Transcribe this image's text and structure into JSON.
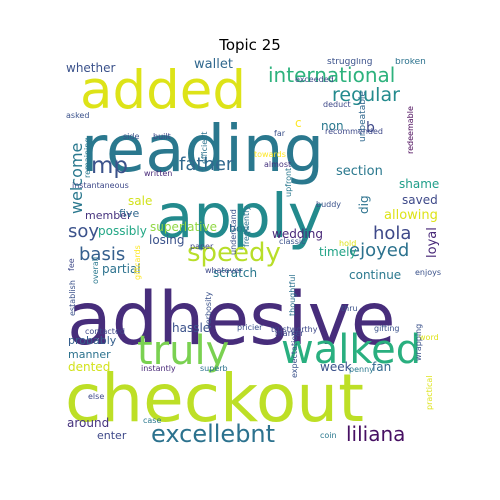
{
  "figure": {
    "title": "Topic 25",
    "words": [
      {
        "text": "checkout",
        "color": "#bddf26"
      },
      {
        "text": "adhesive",
        "color": "#472d7b"
      },
      {
        "text": "reading",
        "color": "#2a788e"
      },
      {
        "text": "apply",
        "color": "#238a8d"
      },
      {
        "text": "added",
        "color": "#dde318"
      },
      {
        "text": "truly",
        "color": "#7ad151"
      },
      {
        "text": "walked",
        "color": "#29af7f"
      },
      {
        "text": "speedy",
        "color": "#b8de29"
      },
      {
        "text": "excellebnt",
        "color": "#2c728e"
      },
      {
        "text": "liliana",
        "color": "#471063"
      },
      {
        "text": "international",
        "color": "#2db27d"
      },
      {
        "text": "father",
        "color": "#31688e"
      },
      {
        "text": "mp",
        "color": "#3b528b"
      },
      {
        "text": "regular",
        "color": "#238a8d"
      },
      {
        "text": "ejoyed",
        "color": "#2c728e"
      },
      {
        "text": "basis",
        "color": "#355f8d"
      },
      {
        "text": "hola",
        "color": "#3e4989"
      },
      {
        "text": "soy",
        "color": "#3b528b"
      },
      {
        "text": "welcome",
        "color": "#2a788e"
      },
      {
        "text": "wallet",
        "color": "#31688e"
      },
      {
        "text": "whether",
        "color": "#3b528b"
      },
      {
        "text": "section",
        "color": "#2a788e"
      },
      {
        "text": "shame",
        "color": "#1f9e89"
      },
      {
        "text": "saved",
        "color": "#3e4989"
      },
      {
        "text": "allowing",
        "color": "#dde318"
      },
      {
        "text": "continue",
        "color": "#2a788e"
      },
      {
        "text": "possibly",
        "color": "#22a785"
      },
      {
        "text": "member",
        "color": "#46337e"
      },
      {
        "text": "sale",
        "color": "#d2e21b"
      },
      {
        "text": "five",
        "color": "#31688e"
      },
      {
        "text": "superlative",
        "color": "#90d743"
      },
      {
        "text": "losing",
        "color": "#3b528b"
      },
      {
        "text": "partial",
        "color": "#2c728e"
      },
      {
        "text": "scratch",
        "color": "#2a788e"
      },
      {
        "text": "timely",
        "color": "#20a386"
      },
      {
        "text": "wedding",
        "color": "#482878"
      },
      {
        "text": "boy",
        "color": "#2a788e"
      },
      {
        "text": "hassle",
        "color": "#3b528b"
      },
      {
        "text": "probably",
        "color": "#355f8d"
      },
      {
        "text": "manner",
        "color": "#2c728e"
      },
      {
        "text": "dented",
        "color": "#d2e21b"
      },
      {
        "text": "around",
        "color": "#46337e"
      },
      {
        "text": "enter",
        "color": "#3e4989"
      },
      {
        "text": "week",
        "color": "#3b528b"
      },
      {
        "text": "fan",
        "color": "#31688e"
      },
      {
        "text": "non",
        "color": "#2a788e"
      },
      {
        "text": "b",
        "color": "#3e4989"
      },
      {
        "text": "c",
        "color": "#fde725"
      },
      {
        "text": "dig",
        "color": "#2c728e"
      },
      {
        "text": "loyal",
        "color": "#482878"
      },
      {
        "text": "struggling",
        "color": "#3b528b"
      },
      {
        "text": "broken",
        "color": "#2c728e"
      },
      {
        "text": "exceeded",
        "color": "#3e4989"
      },
      {
        "text": "deduct",
        "color": "#3e4989"
      },
      {
        "text": "unbeatable",
        "color": "#31688e"
      },
      {
        "text": "redeemable",
        "color": "#440154"
      },
      {
        "text": "asked",
        "color": "#3b528b"
      },
      {
        "text": "remaining",
        "color": "#2a788e"
      },
      {
        "text": "side",
        "color": "#3b528b"
      },
      {
        "text": "written",
        "color": "#482878"
      },
      {
        "text": "built",
        "color": "#3e4989"
      },
      {
        "text": "efficient",
        "color": "#2c728e"
      },
      {
        "text": "far",
        "color": "#3b528b"
      },
      {
        "text": "almost",
        "color": "#46337e"
      },
      {
        "text": "towards",
        "color": "#fde725"
      },
      {
        "text": "recommended",
        "color": "#3e4989"
      },
      {
        "text": "instantaneous",
        "color": "#3e4989"
      },
      {
        "text": "frequently",
        "color": "#2c728e"
      },
      {
        "text": "understand",
        "color": "#3b528b"
      },
      {
        "text": "upfront",
        "color": "#2a788e"
      },
      {
        "text": "buddy",
        "color": "#3b528b"
      },
      {
        "text": "fee",
        "color": "#3e4989"
      },
      {
        "text": "whatever",
        "color": "#3e4989"
      },
      {
        "text": "classic",
        "color": "#3b528b"
      },
      {
        "text": "hold",
        "color": "#dde318"
      },
      {
        "text": "paper",
        "color": "#3e4989"
      },
      {
        "text": "enjoys",
        "color": "#3b528b"
      },
      {
        "text": "establish",
        "color": "#3b528b"
      },
      {
        "text": "overall",
        "color": "#2a788e"
      },
      {
        "text": "giftcards",
        "color": "#fde725"
      },
      {
        "text": "thoughtful",
        "color": "#2c728e"
      },
      {
        "text": "verbosity",
        "color": "#3b528b"
      },
      {
        "text": "marker",
        "color": "#3e4989"
      },
      {
        "text": "thru",
        "color": "#3b528b"
      },
      {
        "text": "word",
        "color": "#dde318"
      },
      {
        "text": "gifting",
        "color": "#3b528b"
      },
      {
        "text": "contacted",
        "color": "#3e4989"
      },
      {
        "text": "pricier",
        "color": "#3b528b"
      },
      {
        "text": "trustworthy",
        "color": "#3e4989"
      },
      {
        "text": "instantly",
        "color": "#482878"
      },
      {
        "text": "superb",
        "color": "#2c728e"
      },
      {
        "text": "penny",
        "color": "#2a788e"
      },
      {
        "text": "expectation",
        "color": "#3b528b"
      },
      {
        "text": "wrapping",
        "color": "#3b528b"
      },
      {
        "text": "else",
        "color": "#3e4989"
      },
      {
        "text": "case",
        "color": "#2a788e"
      },
      {
        "text": "coin",
        "color": "#2a788e"
      },
      {
        "text": "practical",
        "color": "#dde318"
      }
    ]
  }
}
